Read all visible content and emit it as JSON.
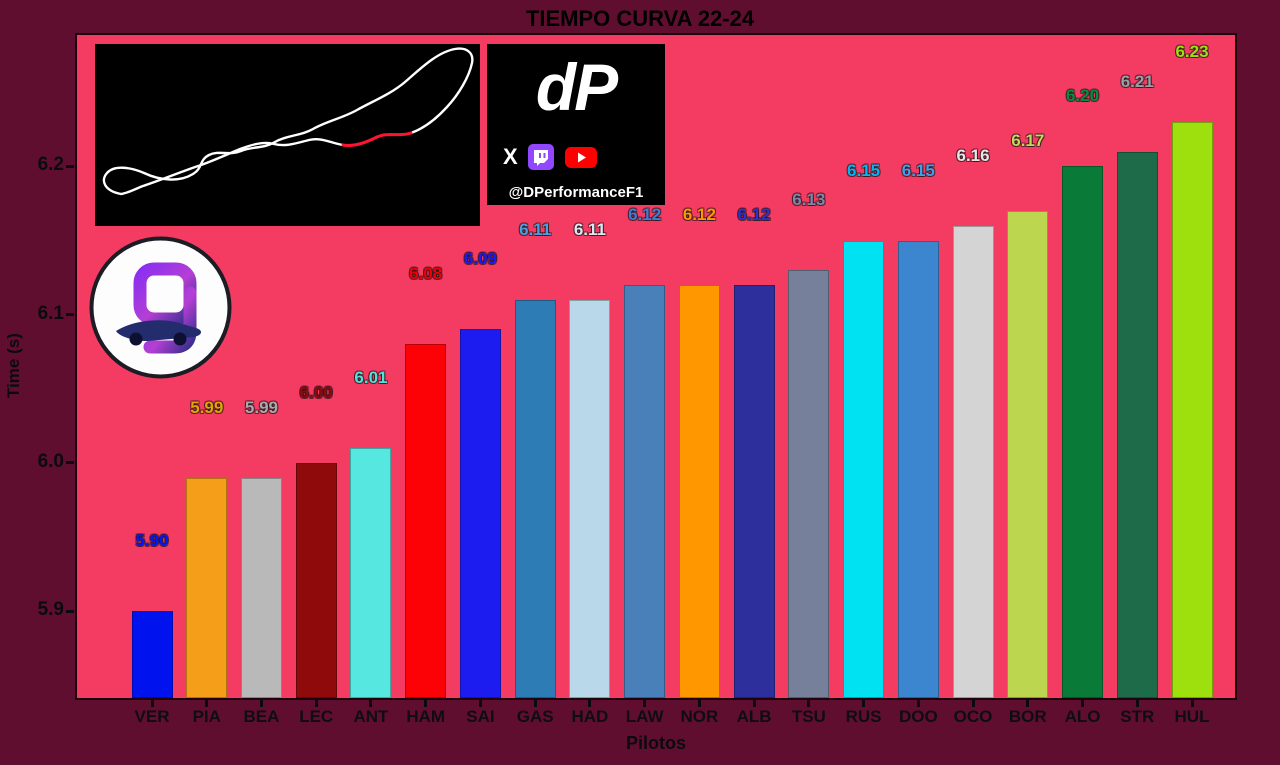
{
  "chart_data": {
    "type": "bar",
    "title": "TIEMPO CURVA 22-24",
    "xlabel": "Pilotos",
    "ylabel": "Time (s)",
    "ylim": [
      5.84,
      6.29
    ],
    "yticks": [
      "5.9",
      "6.0",
      "6.1",
      "6.2"
    ],
    "grid": false,
    "legend": false,
    "background": "#600e2f",
    "plot_bg": "#f43b62",
    "categories": [
      "VER",
      "PIA",
      "BEA",
      "LEC",
      "ANT",
      "HAM",
      "SAI",
      "GAS",
      "HAD",
      "LAW",
      "NOR",
      "ALB",
      "TSU",
      "RUS",
      "DOO",
      "OCO",
      "BOR",
      "ALO",
      "STR",
      "HUL"
    ],
    "values": [
      5.9,
      5.99,
      5.99,
      6.0,
      6.01,
      6.08,
      6.09,
      6.11,
      6.11,
      6.12,
      6.12,
      6.12,
      6.13,
      6.15,
      6.15,
      6.16,
      6.17,
      6.2,
      6.21,
      6.23
    ],
    "value_labels": [
      "5.90",
      "5.99",
      "5.99",
      "6.00",
      "6.01",
      "6.08",
      "6.09",
      "6.11",
      "6.11",
      "6.12",
      "6.12",
      "6.12",
      "6.13",
      "6.15",
      "6.15",
      "6.16",
      "6.17",
      "6.20",
      "6.21",
      "6.23"
    ],
    "bar_colors": [
      "#0012ee",
      "#f59e19",
      "#b9b9b9",
      "#8f0a0a",
      "#56e8e0",
      "#fc0207",
      "#1c1cf0",
      "#2e7cb5",
      "#b9d8ea",
      "#4a80ba",
      "#ff9800",
      "#2c2f9c",
      "#76809b",
      "#00e1f2",
      "#3c86cf",
      "#d4d4d4",
      "#bcd74f",
      "#0a7a38",
      "#1e6b4a",
      "#9ee00e"
    ],
    "label_colors": [
      "#0018ff",
      "#e5a400",
      "#a9a9a9",
      "#8f0a0a",
      "#4de4dc",
      "#f00000",
      "#1c1cf0",
      "#4aa0e0",
      "#dce9f2",
      "#3f7fd0",
      "#ff9800",
      "#2633cc",
      "#7d88a6",
      "#00b8f5",
      "#42a0e8",
      "#e6e6e6",
      "#c3d95c",
      "#00913f",
      "#9aa0a6",
      "#9ee00e"
    ]
  },
  "overlays": {
    "handle": "@DPerformanceF1",
    "x_icon_label": "X",
    "dp_mark": "dP",
    "track_map": "circuit-outline-highlighted-corners-22-24",
    "logo": "dp-circular-monogram"
  }
}
